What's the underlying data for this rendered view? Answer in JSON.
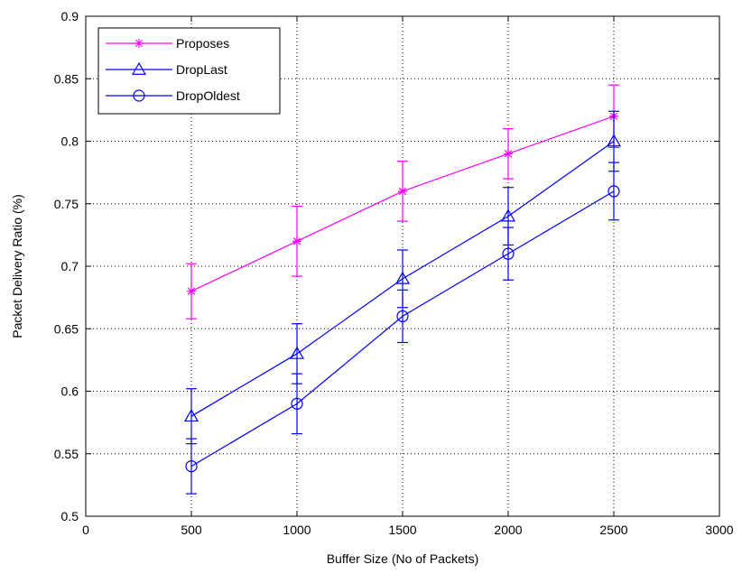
{
  "chart_data": {
    "type": "line",
    "xlabel": "Buffer Size (No of Packets)",
    "ylabel": "Packet Delivery Ratio (%)",
    "xlim": [
      0,
      3000
    ],
    "ylim": [
      0.5,
      0.9
    ],
    "xticks": [
      0,
      500,
      1000,
      1500,
      2000,
      2500,
      3000
    ],
    "xtick_labels": [
      "0",
      "500",
      "1000",
      "1500",
      "2000",
      "2500",
      "3000"
    ],
    "yticks": [
      0.5,
      0.55,
      0.6,
      0.65,
      0.7,
      0.75,
      0.8,
      0.85,
      0.9
    ],
    "ytick_labels": [
      "0.5",
      "0.55",
      "0.6",
      "0.65",
      "0.7",
      "0.75",
      "0.8",
      "0.85",
      "0.9"
    ],
    "grid": true,
    "legend_position": "top-left",
    "x": [
      500,
      1000,
      1500,
      2000,
      2500
    ],
    "series": [
      {
        "name": "Proposes",
        "color": "#ff00ff",
        "marker": "asterisk",
        "values": [
          0.68,
          0.72,
          0.76,
          0.79,
          0.82
        ],
        "error": [
          0.022,
          0.028,
          0.024,
          0.02,
          0.025
        ]
      },
      {
        "name": "DropLast",
        "color": "#0000ff",
        "marker": "triangle",
        "values": [
          0.58,
          0.63,
          0.69,
          0.74,
          0.8
        ],
        "error": [
          0.022,
          0.024,
          0.023,
          0.023,
          0.024
        ]
      },
      {
        "name": "DropOldest",
        "color": "#0000ff",
        "marker": "circle",
        "values": [
          0.54,
          0.59,
          0.66,
          0.71,
          0.76
        ],
        "error": [
          0.022,
          0.024,
          0.021,
          0.021,
          0.023
        ]
      }
    ]
  }
}
